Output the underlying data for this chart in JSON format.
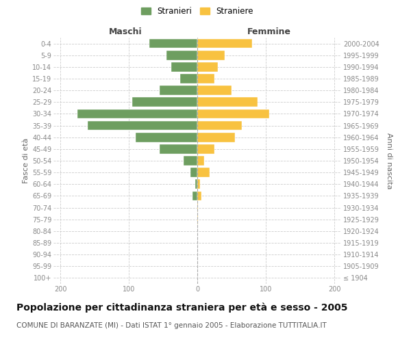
{
  "age_groups": [
    "100+",
    "95-99",
    "90-94",
    "85-89",
    "80-84",
    "75-79",
    "70-74",
    "65-69",
    "60-64",
    "55-59",
    "50-54",
    "45-49",
    "40-44",
    "35-39",
    "30-34",
    "25-29",
    "20-24",
    "15-19",
    "10-14",
    "5-9",
    "0-4"
  ],
  "birth_years": [
    "≤ 1904",
    "1905-1909",
    "1910-1914",
    "1915-1919",
    "1920-1924",
    "1925-1929",
    "1930-1934",
    "1935-1939",
    "1940-1944",
    "1945-1949",
    "1950-1954",
    "1955-1959",
    "1960-1964",
    "1965-1969",
    "1970-1974",
    "1975-1979",
    "1980-1984",
    "1985-1989",
    "1990-1994",
    "1995-1999",
    "2000-2004"
  ],
  "maschi": [
    0,
    0,
    0,
    0,
    0,
    0,
    0,
    7,
    3,
    10,
    20,
    55,
    90,
    160,
    175,
    95,
    55,
    25,
    38,
    45,
    70
  ],
  "femmine": [
    0,
    0,
    0,
    0,
    0,
    1,
    1,
    6,
    4,
    18,
    10,
    25,
    55,
    65,
    105,
    88,
    50,
    25,
    30,
    40,
    80
  ],
  "maschi_color": "#6e9e60",
  "femmine_color": "#f8c240",
  "grid_color": "#cccccc",
  "grid_linestyle": "--",
  "title": "Popolazione per cittadinanza straniera per età e sesso - 2005",
  "subtitle": "COMUNE DI BARANZATE (MI) - Dati ISTAT 1° gennaio 2005 - Elaborazione TUTTITALIA.IT",
  "legend_maschi": "Stranieri",
  "legend_femmine": "Straniere",
  "header_left": "Maschi",
  "header_right": "Femmine",
  "ylabel_left": "Fasce di età",
  "ylabel_right": "Anni di nascita",
  "xlim": 210,
  "xticks": [
    -200,
    -100,
    0,
    100,
    200
  ],
  "title_fontsize": 10,
  "subtitle_fontsize": 7.5,
  "tick_fontsize": 7,
  "header_fontsize": 9,
  "ylabel_fontsize": 8,
  "legend_fontsize": 8.5
}
